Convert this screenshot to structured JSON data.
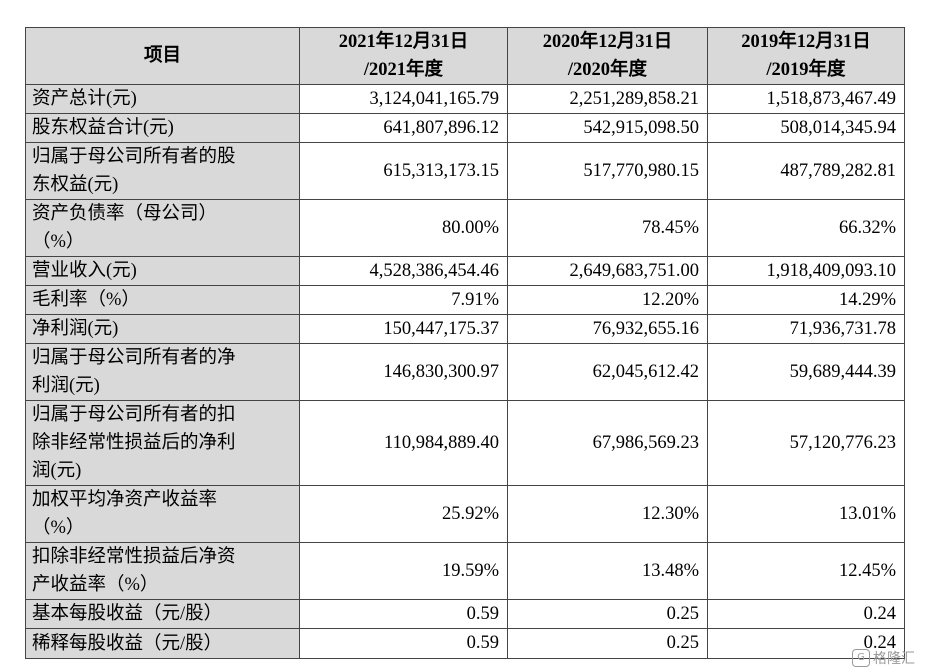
{
  "header": {
    "item": "项目",
    "col1": "2021年12月31日\n/2021年度",
    "col2": "2020年12月31日\n/2020年度",
    "col3": "2019年12月31日\n/2019年度"
  },
  "rows": [
    {
      "label": "资产总计(元)",
      "v1": "3,124,041,165.79",
      "v2": "2,251,289,858.21",
      "v3": "1,518,873,467.49"
    },
    {
      "label": "股东权益合计(元)",
      "v1": "641,807,896.12",
      "v2": "542,915,098.50",
      "v3": "508,014,345.94"
    },
    {
      "label": "归属于母公司所有者的股\n东权益(元)",
      "v1": "615,313,173.15",
      "v2": "517,770,980.15",
      "v3": "487,789,282.81"
    },
    {
      "label": "资产负债率（母公司）\n（%）",
      "v1": "80.00%",
      "v2": "78.45%",
      "v3": "66.32%"
    },
    {
      "label": "营业收入(元)",
      "v1": "4,528,386,454.46",
      "v2": "2,649,683,751.00",
      "v3": "1,918,409,093.10"
    },
    {
      "label": "毛利率（%）",
      "v1": "7.91%",
      "v2": "12.20%",
      "v3": "14.29%"
    },
    {
      "label": "净利润(元)",
      "v1": "150,447,175.37",
      "v2": "76,932,655.16",
      "v3": "71,936,731.78"
    },
    {
      "label": "归属于母公司所有者的净\n利润(元)",
      "v1": "146,830,300.97",
      "v2": "62,045,612.42",
      "v3": "59,689,444.39"
    },
    {
      "label": "归属于母公司所有者的扣\n除非经常性损益后的净利\n润(元)",
      "v1": "110,984,889.40",
      "v2": "67,986,569.23",
      "v3": "57,120,776.23"
    },
    {
      "label": "加权平均净资产收益率\n（%）",
      "v1": "25.92%",
      "v2": "12.30%",
      "v3": "13.01%"
    },
    {
      "label": "扣除非经常性损益后净资\n产收益率（%）",
      "v1": "19.59%",
      "v2": "13.48%",
      "v3": "12.45%"
    },
    {
      "label": "基本每股收益（元/股）",
      "v1": "0.59",
      "v2": "0.25",
      "v3": "0.24"
    },
    {
      "label": "稀释每股收益（元/股）",
      "v1": "0.59",
      "v2": "0.25",
      "v3": "0.24"
    }
  ],
  "watermark": {
    "icon": "gelonghui-logo-icon",
    "logo_text": "G",
    "text": "格隆汇"
  }
}
